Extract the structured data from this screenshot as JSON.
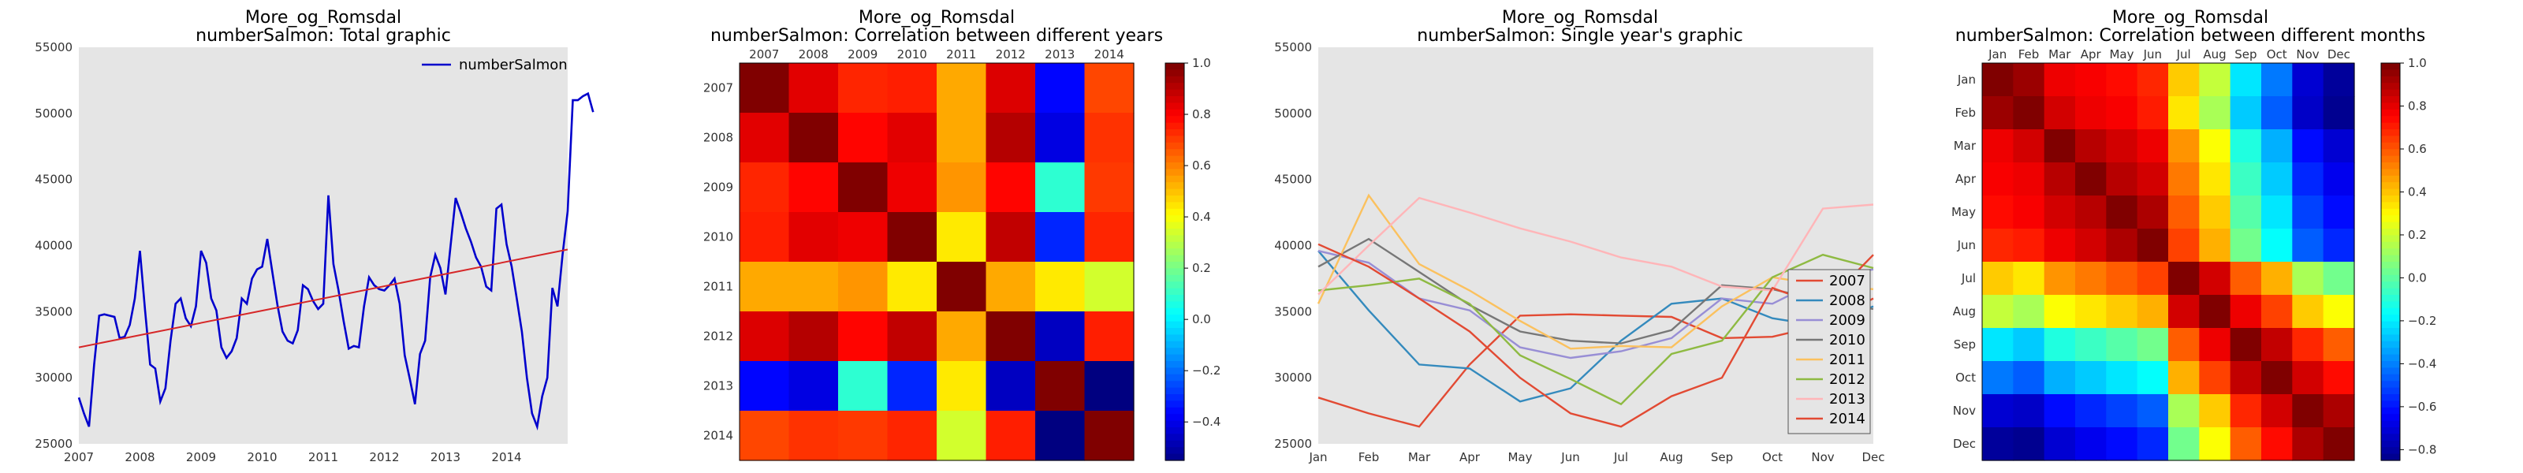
{
  "chart_data": [
    {
      "type": "line",
      "title": "More_og_Romsdal",
      "subtitle": "numberSalmon: Total graphic",
      "legend_position": "top-right",
      "x_ticks": [
        "2007",
        "2008",
        "2009",
        "2010",
        "2011",
        "2012",
        "2013",
        "2014"
      ],
      "xlim": [
        "2007-01",
        "2014-12"
      ],
      "ylim": [
        25000,
        55000
      ],
      "y_ticks": [
        25000,
        30000,
        35000,
        40000,
        45000,
        50000,
        55000
      ],
      "grid": false,
      "series": [
        {
          "name": "numberSalmon",
          "color": "#0000cc",
          "x_start": "2007-01",
          "values": [
            28500,
            27300,
            26300,
            31000,
            34700,
            34800,
            34700,
            34600,
            33000,
            33100,
            34000,
            36000,
            39600,
            35100,
            31000,
            30700,
            28200,
            29200,
            32800,
            35600,
            36000,
            34500,
            33900,
            35400,
            39600,
            38700,
            36000,
            35100,
            32300,
            31500,
            32000,
            33000,
            36000,
            35600,
            37500,
            38200,
            38400,
            40500,
            38000,
            35500,
            33500,
            32800,
            32600,
            33600,
            37000,
            36700,
            35800,
            35200,
            35600,
            43800,
            38600,
            36600,
            34300,
            32200,
            32400,
            32300,
            35400,
            37600,
            37000,
            36700,
            36600,
            37000,
            37500,
            35600,
            31700,
            29900,
            28000,
            31800,
            32800,
            37600,
            39300,
            38300,
            36300,
            40000,
            43600,
            42500,
            41300,
            40300,
            39100,
            38400,
            36900,
            36600,
            42800,
            43100,
            40100,
            38400,
            36000,
            33500,
            30000,
            27300,
            26300,
            28600,
            30000,
            36800,
            35400,
            39300,
            42600,
            51000,
            51000,
            51300,
            51500,
            50100
          ]
        },
        {
          "name": "",
          "color": "#d62728",
          "x_start": "2007-01",
          "values_endpoints": [
            32300,
            39700
          ]
        }
      ]
    },
    {
      "type": "heatmap",
      "title": "More_og_Romsdal",
      "subtitle": "numberSalmon: Correlation between different years",
      "labels": [
        "2007",
        "2008",
        "2009",
        "2010",
        "2011",
        "2012",
        "2013",
        "2014"
      ],
      "colorbar_ticks": [
        "1.0",
        "0.8",
        "0.6",
        "0.4",
        "0.2",
        "0.0",
        "−0.2",
        "−0.4"
      ],
      "colorbar_range": [
        -0.55,
        1.0
      ],
      "matrix": [
        [
          1.0,
          0.85,
          0.75,
          0.76,
          0.55,
          0.86,
          -0.35,
          0.7
        ],
        [
          0.85,
          1.0,
          0.8,
          0.85,
          0.55,
          0.92,
          -0.4,
          0.73
        ],
        [
          0.75,
          0.8,
          1.0,
          0.83,
          0.58,
          0.8,
          0.1,
          0.72
        ],
        [
          0.76,
          0.85,
          0.83,
          1.0,
          0.45,
          0.9,
          -0.3,
          0.75
        ],
        [
          0.55,
          0.55,
          0.58,
          0.45,
          1.0,
          0.55,
          0.45,
          0.35
        ],
        [
          0.86,
          0.92,
          0.8,
          0.9,
          0.55,
          1.0,
          -0.45,
          0.76
        ],
        [
          -0.35,
          -0.4,
          0.1,
          -0.3,
          0.45,
          -0.45,
          1.0,
          -0.55
        ],
        [
          0.7,
          0.73,
          0.72,
          0.75,
          0.35,
          0.76,
          -0.55,
          1.0
        ]
      ]
    },
    {
      "type": "line",
      "title": "More_og_Romsdal",
      "subtitle": "numberSalmon: Single year's graphic",
      "categories": [
        "Jan",
        "Feb",
        "Mar",
        "Apr",
        "May",
        "Jun",
        "Jul",
        "Aug",
        "Sep",
        "Oct",
        "Nov",
        "Dec"
      ],
      "ylim": [
        25000,
        55000
      ],
      "y_ticks": [
        25000,
        30000,
        35000,
        40000,
        45000,
        50000,
        55000
      ],
      "legend_position": "lower-right",
      "series": [
        {
          "name": "2007",
          "color": "#e24a33",
          "values": [
            28500,
            27300,
            26300,
            31000,
            34700,
            34800,
            34700,
            34600,
            33000,
            33100,
            34000,
            36000
          ]
        },
        {
          "name": "2008",
          "color": "#348abd",
          "values": [
            39600,
            35100,
            31000,
            30700,
            28200,
            29200,
            32800,
            35600,
            36000,
            34500,
            33900,
            35400
          ]
        },
        {
          "name": "2009",
          "color": "#988ed5",
          "values": [
            39600,
            38700,
            36000,
            35100,
            32300,
            31500,
            32000,
            33000,
            36000,
            35600,
            37500,
            38200
          ]
        },
        {
          "name": "2010",
          "color": "#777777",
          "values": [
            38400,
            40500,
            38000,
            35500,
            33500,
            32800,
            32600,
            33600,
            37000,
            36700,
            35800,
            35200
          ]
        },
        {
          "name": "2011",
          "color": "#fbc15e",
          "values": [
            35600,
            43800,
            38600,
            36600,
            34300,
            32200,
            32400,
            32300,
            35400,
            37600,
            37000,
            36700
          ]
        },
        {
          "name": "2012",
          "color": "#8eba42",
          "values": [
            36600,
            37000,
            37500,
            35600,
            31700,
            29900,
            28000,
            31800,
            32800,
            37600,
            39300,
            38300
          ]
        },
        {
          "name": "2013",
          "color": "#ffb5b8",
          "values": [
            36300,
            40000,
            43600,
            42500,
            41300,
            40300,
            39100,
            38400,
            36900,
            36600,
            42800,
            43100
          ]
        },
        {
          "name": "2014",
          "color": "#e24a33",
          "values": [
            40100,
            38400,
            36000,
            33500,
            30000,
            27300,
            26300,
            28600,
            30000,
            36800,
            35400,
            39300
          ]
        }
      ]
    },
    {
      "type": "heatmap",
      "title": "More_og_Romsdal",
      "subtitle": "numberSalmon: Correlation between different months",
      "labels": [
        "Jan",
        "Feb",
        "Mar",
        "Apr",
        "May",
        "Jun",
        "Jul",
        "Aug",
        "Sep",
        "Oct",
        "Nov",
        "Dec"
      ],
      "colorbar_ticks": [
        "1.0",
        "0.8",
        "0.6",
        "0.4",
        "0.2",
        "0.0",
        "−0.2",
        "−0.4",
        "−0.6",
        "−0.8"
      ],
      "colorbar_range": [
        -0.85,
        1.0
      ],
      "matrix": [
        [
          1.0,
          0.95,
          0.8,
          0.78,
          0.75,
          0.7,
          0.4,
          0.2,
          -0.2,
          -0.4,
          -0.7,
          -0.8
        ],
        [
          0.95,
          1.0,
          0.85,
          0.8,
          0.78,
          0.72,
          0.35,
          0.15,
          -0.25,
          -0.45,
          -0.72,
          -0.82
        ],
        [
          0.8,
          0.85,
          1.0,
          0.9,
          0.85,
          0.8,
          0.5,
          0.3,
          -0.1,
          -0.3,
          -0.6,
          -0.7
        ],
        [
          0.78,
          0.8,
          0.9,
          1.0,
          0.9,
          0.85,
          0.55,
          0.35,
          -0.05,
          -0.25,
          -0.55,
          -0.65
        ],
        [
          0.75,
          0.78,
          0.85,
          0.9,
          1.0,
          0.92,
          0.6,
          0.4,
          0.0,
          -0.2,
          -0.5,
          -0.6
        ],
        [
          0.7,
          0.72,
          0.8,
          0.85,
          0.92,
          1.0,
          0.65,
          0.45,
          0.05,
          -0.15,
          -0.45,
          -0.55
        ],
        [
          0.4,
          0.35,
          0.5,
          0.55,
          0.6,
          0.65,
          1.0,
          0.85,
          0.6,
          0.45,
          0.15,
          0.05
        ],
        [
          0.2,
          0.15,
          0.3,
          0.35,
          0.4,
          0.45,
          0.85,
          1.0,
          0.8,
          0.65,
          0.4,
          0.3
        ],
        [
          -0.2,
          -0.25,
          -0.1,
          -0.05,
          0.0,
          0.05,
          0.6,
          0.8,
          1.0,
          0.88,
          0.7,
          0.6
        ],
        [
          -0.4,
          -0.45,
          -0.3,
          -0.25,
          -0.2,
          -0.15,
          0.45,
          0.65,
          0.88,
          1.0,
          0.85,
          0.75
        ],
        [
          -0.7,
          -0.72,
          -0.6,
          -0.55,
          -0.5,
          -0.45,
          0.15,
          0.4,
          0.7,
          0.85,
          1.0,
          0.92
        ],
        [
          -0.8,
          -0.82,
          -0.7,
          -0.65,
          -0.6,
          -0.55,
          0.05,
          0.3,
          0.6,
          0.75,
          0.92,
          1.0
        ]
      ]
    }
  ]
}
